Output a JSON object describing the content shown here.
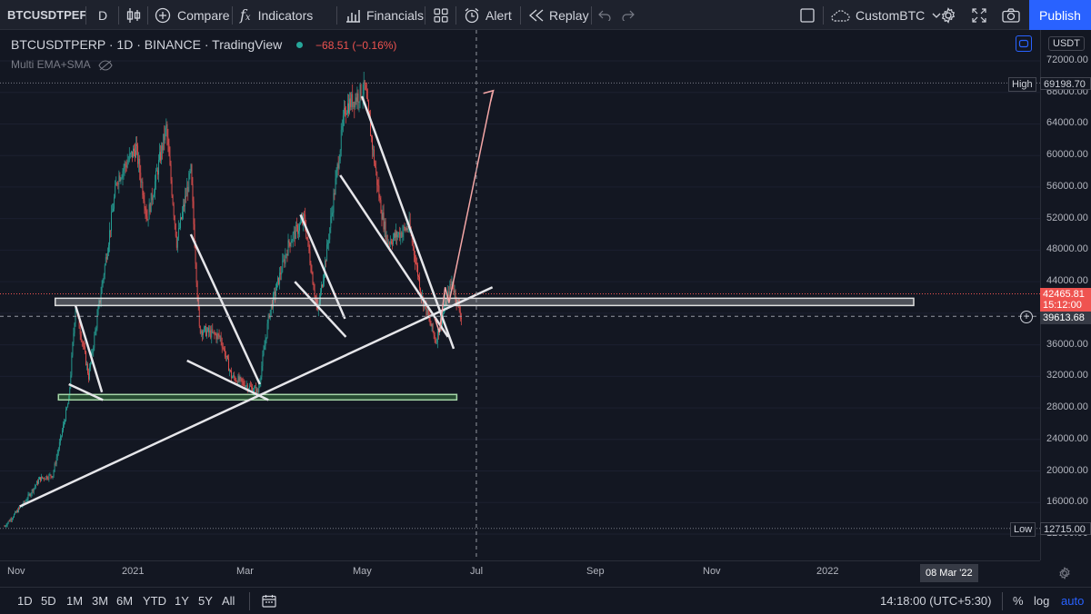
{
  "toolbar": {
    "symbol": "BTCUSDTPEF",
    "interval": "D",
    "compare": "Compare",
    "indicators": "Indicators",
    "financials": "Financials",
    "alert": "Alert",
    "replay": "Replay",
    "layout_name": "CustomBTC",
    "publish": "Publish"
  },
  "legend": {
    "title": "BTCUSDTPERP · 1D · BINANCE · TradingView",
    "change": "−68.51 (−0.16%)",
    "indicator": "Multi EMA+SMA"
  },
  "price_axis": {
    "currency": "USDT",
    "ticks": [
      "72000.00",
      "68000.00",
      "64000.00",
      "60000.00",
      "56000.00",
      "52000.00",
      "48000.00",
      "44000.00",
      "40000.00",
      "36000.00",
      "32000.00",
      "28000.00",
      "24000.00",
      "20000.00",
      "16000.00",
      "12000.00"
    ],
    "high_label": "High",
    "high_value": "69198.70",
    "low_label": "Low",
    "low_value": "12715.00",
    "last_price": "42465.81",
    "countdown": "15:12:00",
    "crosshair_price": "39613.68"
  },
  "time_axis": {
    "labels": [
      "Nov",
      "2021",
      "Mar",
      "May",
      "Jul",
      "Sep",
      "Nov",
      "2022"
    ],
    "crosshair_date": "08 Mar '22"
  },
  "bottom": {
    "timeframes": [
      "1D",
      "5D",
      "1M",
      "3M",
      "6M",
      "YTD",
      "1Y",
      "5Y",
      "All"
    ],
    "clock": "14:18:00 (UTC+5:30)",
    "percent": "%",
    "log": "log",
    "auto": "auto"
  },
  "colors": {
    "up": "#26a69a",
    "down": "#ef5350",
    "accent": "#2962ff",
    "support_zone": "#a5d6a7",
    "resistance_zone": "#e0e0e0",
    "projection": "#f4a6a6"
  },
  "chart_data": {
    "type": "candlestick",
    "symbol": "BTCUSDTPERP",
    "interval": "1D",
    "exchange": "BINANCE",
    "y_range": [
      11000,
      74000
    ],
    "x_range": [
      "2020-10-25",
      "2022-03-20"
    ],
    "approx_closes": [
      {
        "date": "2020-10-25",
        "close": 13000
      },
      {
        "date": "2020-11-15",
        "close": 16000
      },
      {
        "date": "2020-12-01",
        "close": 19000
      },
      {
        "date": "2020-12-15",
        "close": 19500
      },
      {
        "date": "2021-01-01",
        "close": 29000
      },
      {
        "date": "2021-01-08",
        "close": 41000
      },
      {
        "date": "2021-01-22",
        "close": 32000
      },
      {
        "date": "2021-02-08",
        "close": 46000
      },
      {
        "date": "2021-02-21",
        "close": 57000
      },
      {
        "date": "2021-03-13",
        "close": 61000
      },
      {
        "date": "2021-03-25",
        "close": 52000
      },
      {
        "date": "2021-04-14",
        "close": 63500
      },
      {
        "date": "2021-04-25",
        "close": 49000
      },
      {
        "date": "2021-05-10",
        "close": 58000
      },
      {
        "date": "2021-05-19",
        "close": 38000
      },
      {
        "date": "2021-06-10",
        "close": 37000
      },
      {
        "date": "2021-06-22",
        "close": 32000
      },
      {
        "date": "2021-07-20",
        "close": 30000
      },
      {
        "date": "2021-08-01",
        "close": 40000
      },
      {
        "date": "2021-08-22",
        "close": 49000
      },
      {
        "date": "2021-09-07",
        "close": 52000
      },
      {
        "date": "2021-09-21",
        "close": 40000
      },
      {
        "date": "2021-10-01",
        "close": 48000
      },
      {
        "date": "2021-10-20",
        "close": 66000
      },
      {
        "date": "2021-11-10",
        "close": 68500
      },
      {
        "date": "2021-11-26",
        "close": 54000
      },
      {
        "date": "2021-12-04",
        "close": 49000
      },
      {
        "date": "2021-12-27",
        "close": 51000
      },
      {
        "date": "2022-01-10",
        "close": 41800
      },
      {
        "date": "2022-01-24",
        "close": 36500
      },
      {
        "date": "2022-02-10",
        "close": 44000
      },
      {
        "date": "2022-02-20",
        "close": 39500
      }
    ]
  }
}
